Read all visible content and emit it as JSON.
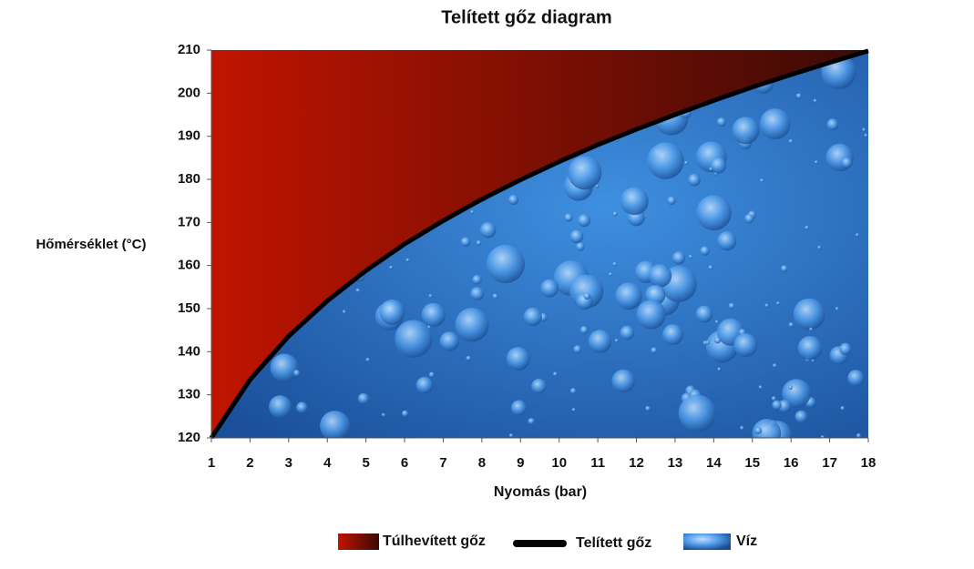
{
  "chart_data": {
    "type": "line",
    "title": "Telített gőz diagram",
    "x_label": "Nyomás (bar)",
    "y_label": "Hőmérséklet (°C)",
    "x": [
      1,
      2,
      3,
      4,
      5,
      6,
      7,
      8,
      9,
      10,
      11,
      12,
      13,
      14,
      15,
      16,
      17,
      18
    ],
    "series": [
      {
        "name": "Telített gőz",
        "color": "#000000",
        "values": [
          120,
          133.5,
          143.6,
          151.8,
          158.8,
          165,
          170.4,
          175.4,
          179.9,
          184.1,
          188,
          191.6,
          195,
          198.3,
          201.4,
          204.3,
          207.1,
          209.8
        ]
      }
    ],
    "areas": [
      {
        "name": "Túlhevített gőz",
        "color": "#8c0a00",
        "side": "above"
      },
      {
        "name": "Víz",
        "color": "#2f7ad0",
        "side": "below"
      }
    ],
    "xlim": [
      1,
      18
    ],
    "xticks": [
      1,
      2,
      3,
      4,
      5,
      6,
      7,
      8,
      9,
      10,
      11,
      12,
      13,
      14,
      15,
      16,
      17,
      18
    ],
    "ylim": [
      120,
      210
    ],
    "yticks": [
      120,
      130,
      140,
      150,
      160,
      170,
      180,
      190,
      200,
      210
    ]
  }
}
